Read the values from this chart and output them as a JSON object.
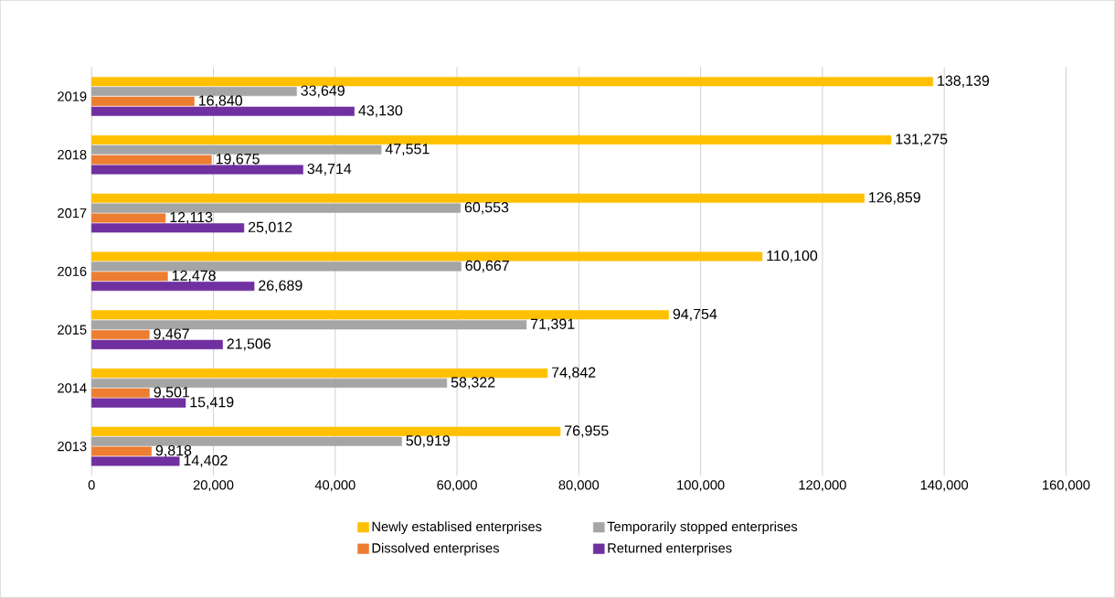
{
  "chart_data": {
    "type": "bar",
    "orientation": "horizontal",
    "categories": [
      "2019",
      "2018",
      "2017",
      "2016",
      "2015",
      "2014",
      "2013"
    ],
    "series": [
      {
        "name": "Newly establised enterprises",
        "color": "#ffc000",
        "values": [
          138139,
          131275,
          126859,
          110100,
          94754,
          74842,
          76955
        ],
        "value_labels": [
          "138,139",
          "131,275",
          "126,859",
          "110,100",
          "94,754",
          "74,842",
          "76,955"
        ]
      },
      {
        "name": "Temporarily stopped enterprises",
        "color": "#a5a5a5",
        "values": [
          33649,
          47551,
          60553,
          60667,
          71391,
          58322,
          50919
        ],
        "value_labels": [
          "33,649",
          "47,551",
          "60,553",
          "60,667",
          "71,391",
          "58,322",
          "50,919"
        ]
      },
      {
        "name": "Dissolved enterprises",
        "color": "#ed7d31",
        "values": [
          16840,
          19675,
          12113,
          12478,
          9467,
          9501,
          9818
        ],
        "value_labels": [
          "16,840",
          "19,675",
          "12,113",
          "12,478",
          "9,467",
          "9,501",
          "9,818"
        ]
      },
      {
        "name": "Returned enterprises",
        "color": "#7030a0",
        "values": [
          43130,
          34714,
          25012,
          26689,
          21506,
          15419,
          14402
        ],
        "value_labels": [
          "43,130",
          "34,714",
          "25,012",
          "26,689",
          "21,506",
          "15,419",
          "14,402"
        ]
      }
    ],
    "xlim": [
      0,
      160000
    ],
    "xticks": [
      0,
      {
        "value": 20000,
        "label": "20,000"
      },
      {
        "value": 40000,
        "label": "40,000"
      },
      {
        "value": 60000,
        "label": "60,000"
      },
      {
        "value": 80000,
        "label": "80,000"
      },
      {
        "value": 100000,
        "label": "100,000"
      },
      {
        "value": 120000,
        "label": "120,000"
      },
      {
        "value": 140000,
        "label": "140,000"
      },
      {
        "value": 160000,
        "label": "160,000"
      }
    ],
    "grid": "x",
    "legend": "bottom"
  }
}
